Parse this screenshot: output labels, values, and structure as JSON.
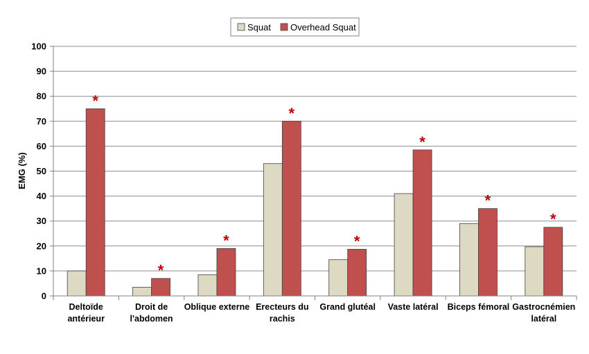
{
  "chart_data": {
    "type": "bar",
    "title": "",
    "xlabel": "",
    "ylabel": "EMG (%)",
    "ylim": [
      0,
      100
    ],
    "yticks": [
      0,
      10,
      20,
      30,
      40,
      50,
      60,
      70,
      80,
      90,
      100
    ],
    "grid": true,
    "legend_position": "top-center",
    "categories": [
      [
        "Deltoïde",
        "antérieur"
      ],
      [
        "Droit de",
        "l'abdomen"
      ],
      [
        "Oblique externe"
      ],
      [
        "Erecteurs du",
        "rachis"
      ],
      [
        "Grand glutéal"
      ],
      [
        "Vaste latéral"
      ],
      [
        "Biceps fémoral"
      ],
      [
        "Gastrocnémien",
        "latéral"
      ]
    ],
    "series": [
      {
        "name": "Squat",
        "color": "#ddd9c3",
        "values": [
          10,
          3.5,
          8.5,
          53,
          14.5,
          41,
          29,
          19.7
        ]
      },
      {
        "name": "Overhead Squat",
        "color": "#c0504d",
        "values": [
          75,
          7,
          19,
          70,
          18.7,
          58.5,
          35,
          27.5
        ]
      }
    ],
    "significance_marker": "*",
    "significant": [
      true,
      true,
      true,
      true,
      true,
      true,
      true,
      true
    ]
  }
}
